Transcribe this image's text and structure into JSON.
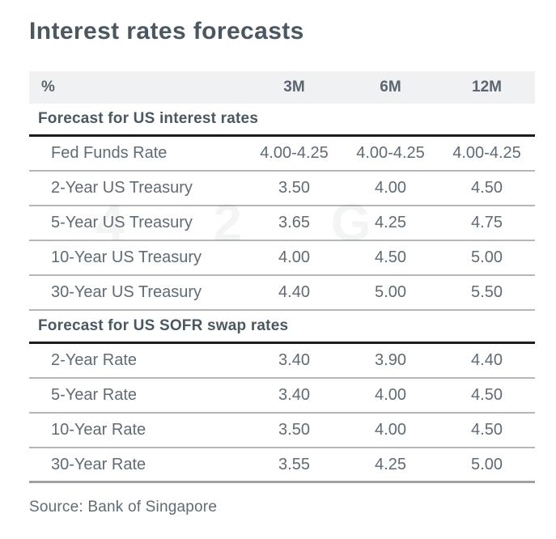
{
  "chart_data": {
    "type": "table",
    "title": "Interest rates forecasts",
    "unit_label": "%",
    "columns": [
      "%",
      "3M",
      "6M",
      "12M"
    ],
    "sections": [
      {
        "header": "Forecast for US interest rates",
        "rows": [
          {
            "label": "Fed Funds Rate",
            "values": [
              "4.00-4.25",
              "4.00-4.25",
              "4.00-4.25"
            ]
          },
          {
            "label": "2-Year US Treasury",
            "values": [
              "3.50",
              "4.00",
              "4.50"
            ]
          },
          {
            "label": "5-Year US Treasury",
            "values": [
              "3.65",
              "4.25",
              "4.75"
            ]
          },
          {
            "label": "10-Year US Treasury",
            "values": [
              "4.00",
              "4.50",
              "5.00"
            ]
          },
          {
            "label": "30-Year US Treasury",
            "values": [
              "4.40",
              "5.00",
              "5.50"
            ]
          }
        ]
      },
      {
        "header": "Forecast for US SOFR swap rates",
        "rows": [
          {
            "label": "2-Year Rate",
            "values": [
              "3.40",
              "3.90",
              "4.40"
            ]
          },
          {
            "label": "5-Year Rate",
            "values": [
              "3.40",
              "4.00",
              "4.50"
            ]
          },
          {
            "label": "10-Year Rate",
            "values": [
              "3.50",
              "4.00",
              "4.50"
            ]
          },
          {
            "label": "30-Year Rate",
            "values": [
              "3.55",
              "4.25",
              "5.00"
            ]
          }
        ]
      }
    ],
    "source": "Source: Bank of Singapore"
  },
  "watermark": "4 2 G",
  "colors": {
    "title_text": "#4a5862",
    "body_text": "#5f6b76",
    "header_band_bg": "#f0f1f2",
    "row_divider": "#b4b6b8",
    "section_rule": "#1d1d1d",
    "end_rule": "#9fa2a5"
  }
}
